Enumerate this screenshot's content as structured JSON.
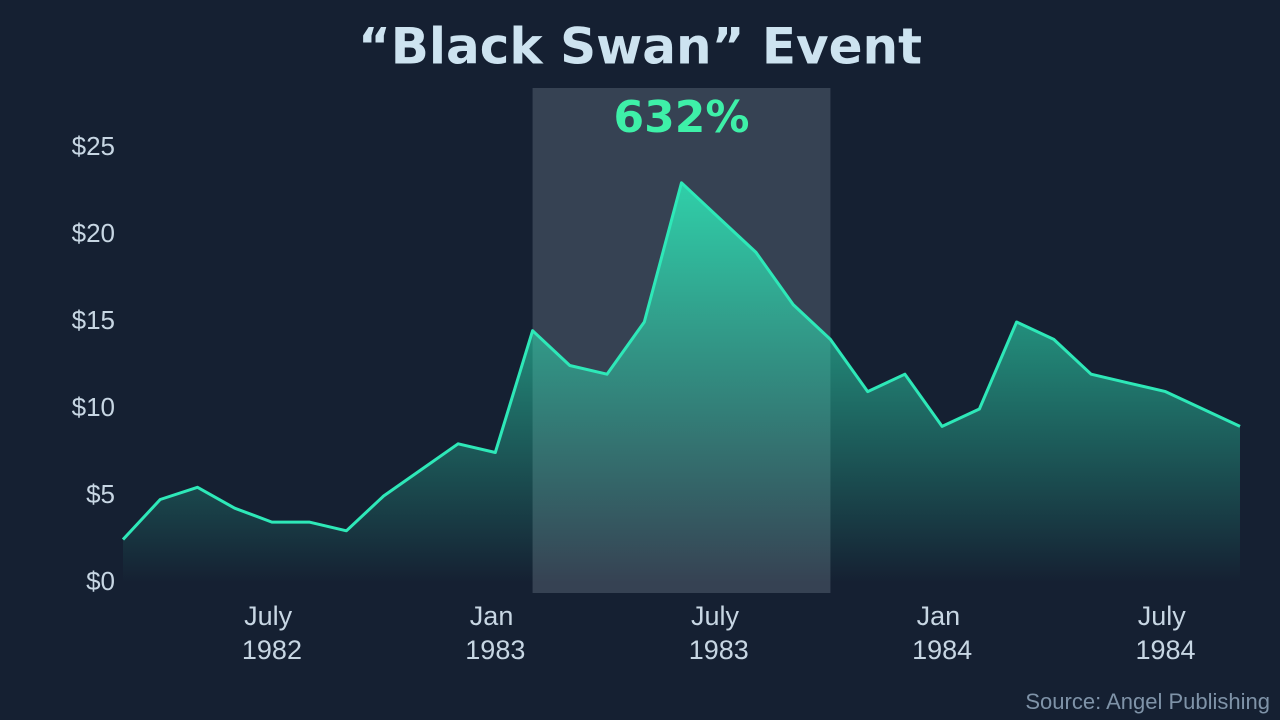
{
  "chart_data": {
    "type": "area",
    "title": "“Black Swan” Event",
    "annotation": "632%",
    "source": "Source: Angel Publishing",
    "x": [
      "1982-03",
      "1982-04",
      "1982-05",
      "1982-06",
      "1982-07",
      "1982-08",
      "1982-09",
      "1982-10",
      "1982-11",
      "1982-12",
      "1983-01",
      "1983-02",
      "1983-03",
      "1983-04",
      "1983-05",
      "1983-06",
      "1983-07",
      "1983-08",
      "1983-09",
      "1983-10",
      "1983-11",
      "1983-12",
      "1984-01",
      "1984-02",
      "1984-03",
      "1984-04",
      "1984-05",
      "1984-06",
      "1984-07",
      "1984-08",
      "1984-09"
    ],
    "values": [
      2.5,
      4.8,
      5.5,
      4.3,
      3.5,
      3.5,
      3.0,
      5.0,
      6.5,
      8.0,
      7.5,
      14.5,
      12.5,
      12.0,
      15.0,
      23.0,
      21.0,
      19.0,
      16.0,
      14.0,
      11.0,
      12.0,
      9.0,
      10.0,
      15.0,
      14.0,
      12.0,
      11.5,
      11.0,
      10.0,
      9.0
    ],
    "color": "#2ee8b8",
    "highlight": [
      "1983-02",
      "1983-10"
    ],
    "xlim": [
      "1982-03",
      "1984-09"
    ],
    "xticks": [
      {
        "value": "1982-07",
        "label": "July 1982"
      },
      {
        "value": "1983-01",
        "label": "Jan 1983"
      },
      {
        "value": "1983-07",
        "label": "July 1983"
      },
      {
        "value": "1984-01",
        "label": "Jan 1984"
      },
      {
        "value": "1984-07",
        "label": "July 1984"
      }
    ],
    "ylim": [
      0,
      25
    ],
    "yticks": [
      {
        "value": 0,
        "label": "$0"
      },
      {
        "value": 5,
        "label": "$5"
      },
      {
        "value": 10,
        "label": "$10"
      },
      {
        "value": 15,
        "label": "$15"
      },
      {
        "value": 20,
        "label": "$20"
      },
      {
        "value": 25,
        "label": "$25"
      }
    ],
    "grid": false
  }
}
